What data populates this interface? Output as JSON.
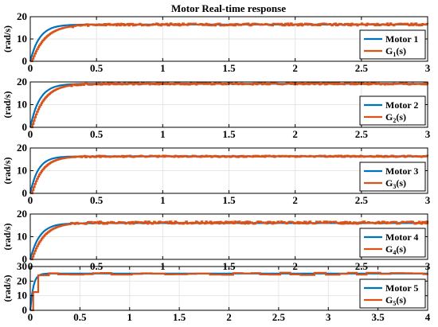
{
  "title": "Motor Real-time response",
  "colors": {
    "model": "#0072BD",
    "measured": "#D95319",
    "grid": "#e6e6e6",
    "axis": "#000000"
  },
  "chart_data": [
    {
      "type": "line",
      "ylabel": "(rad/s)",
      "xlim": [
        0,
        3
      ],
      "ylim": [
        0,
        20
      ],
      "xticks": [
        0,
        0.5,
        1,
        1.5,
        2,
        2.5,
        3
      ],
      "xtick_labels": [
        "0",
        "0.5",
        "1",
        "1.5",
        "2",
        "2.5",
        "3"
      ],
      "yticks": [
        0,
        10,
        20
      ],
      "ytick_labels": [
        "0",
        "10",
        "20"
      ],
      "grid": true,
      "legend": "right",
      "series": [
        {
          "name": "Motor 1",
          "kind": "model",
          "final": 16.5,
          "tau": 0.07
        },
        {
          "name": "G",
          "sub": "1",
          "suffix": "(s)",
          "kind": "measured",
          "final": 16.5,
          "tau": 0.1,
          "noise": 1.0
        }
      ]
    },
    {
      "type": "line",
      "ylabel": "(rad/s)",
      "xlim": [
        0,
        3
      ],
      "ylim": [
        0,
        20
      ],
      "xticks": [
        0,
        0.5,
        1,
        1.5,
        2,
        2.5,
        3
      ],
      "xtick_labels": [
        "0",
        "0.5",
        "1",
        "1.5",
        "2",
        "2.5",
        "3"
      ],
      "yticks": [
        0,
        10,
        20
      ],
      "ytick_labels": [
        "0",
        "10",
        "20"
      ],
      "grid": true,
      "legend": "right",
      "series": [
        {
          "name": "Motor 2",
          "kind": "model",
          "final": 19.2,
          "tau": 0.07
        },
        {
          "name": "G",
          "sub": "2",
          "suffix": "(s)",
          "kind": "measured",
          "final": 19.2,
          "tau": 0.09,
          "noise": 0.8
        }
      ]
    },
    {
      "type": "line",
      "ylabel": "(rad/s)",
      "xlim": [
        0,
        3
      ],
      "ylim": [
        0,
        20
      ],
      "xticks": [
        0,
        0.5,
        1,
        1.5,
        2,
        2.5,
        3
      ],
      "xtick_labels": [
        "0",
        "0.5",
        "1",
        "1.5",
        "2",
        "2.5",
        "3"
      ],
      "yticks": [
        0,
        10,
        20
      ],
      "ytick_labels": [
        "0",
        "10",
        "20"
      ],
      "grid": true,
      "legend": "right",
      "series": [
        {
          "name": "Motor 3",
          "kind": "model",
          "final": 16.3,
          "tau": 0.06
        },
        {
          "name": "G",
          "sub": "3",
          "suffix": "(s)",
          "kind": "measured",
          "final": 16.3,
          "tau": 0.08,
          "noise": 0.7
        }
      ]
    },
    {
      "type": "line",
      "ylabel": "(rad/s)",
      "xlim": [
        0,
        3
      ],
      "ylim": [
        0,
        20
      ],
      "xticks": [
        0,
        0.5,
        1,
        1.5,
        2,
        2.5,
        3
      ],
      "xtick_labels": [
        "0",
        "0.5",
        "1",
        "1.5",
        "2",
        "2.5",
        "3"
      ],
      "yticks": [
        0,
        10,
        20
      ],
      "ytick_labels": [
        "0",
        "10",
        "20"
      ],
      "grid": true,
      "legend": "right",
      "series": [
        {
          "name": "Motor 4",
          "kind": "model",
          "final": 16.0,
          "tau": 0.07
        },
        {
          "name": "G",
          "sub": "4",
          "suffix": "(s)",
          "kind": "measured",
          "final": 16.2,
          "tau": 0.09,
          "noise": 1.1
        }
      ]
    },
    {
      "type": "line",
      "ylabel": "(rad/s)",
      "xlim": [
        0,
        4
      ],
      "ylim": [
        0,
        30
      ],
      "xticks": [
        0,
        0.5,
        1,
        1.5,
        2,
        2.5,
        3,
        3.5,
        4
      ],
      "xtick_labels": [
        "0",
        "0.5",
        "1",
        "1.5",
        "2",
        "2.5",
        "3",
        "3.5",
        "4"
      ],
      "yticks": [
        0,
        10,
        20,
        30
      ],
      "ytick_labels": [
        "0",
        "10",
        "20",
        "30"
      ],
      "grid": true,
      "legend": "right",
      "series": [
        {
          "name": "Motor 5",
          "kind": "model",
          "final": 25.2,
          "tau": 0.03
        },
        {
          "name": "G",
          "sub": "5",
          "suffix": "(s)",
          "kind": "measured-steps",
          "final": 25.0,
          "noise": 1.6
        }
      ]
    }
  ]
}
